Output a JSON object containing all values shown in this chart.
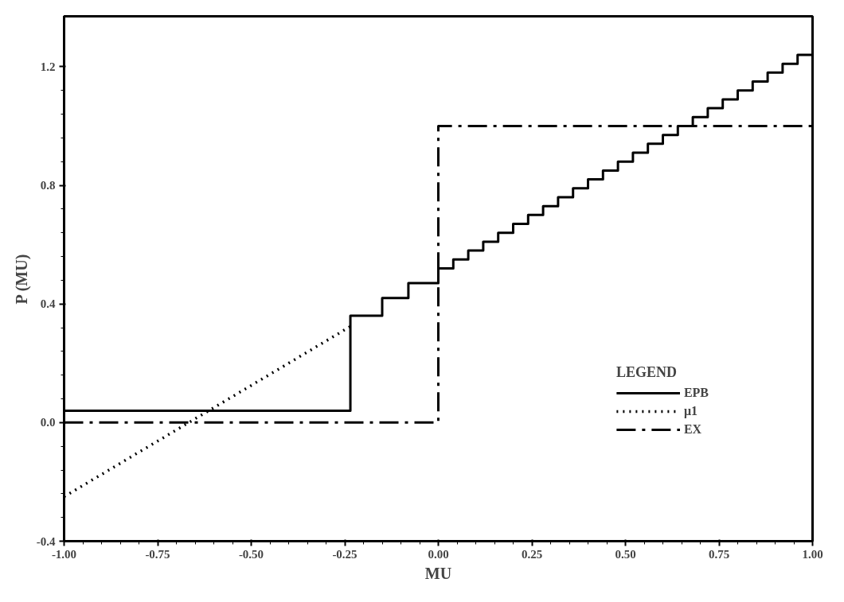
{
  "chart_data": {
    "type": "line",
    "xlabel": "MU",
    "ylabel": "P (MU)",
    "legend_title": "LEGEND",
    "legend": "bottom right",
    "grid": false,
    "xlim": [
      -1.0,
      1.0
    ],
    "ylim": [
      -0.4,
      1.37
    ],
    "xticks": [
      {
        "value": -1.0,
        "label": "-1.00"
      },
      {
        "value": -0.75,
        "label": "-0.75"
      },
      {
        "value": -0.5,
        "label": "-0.50"
      },
      {
        "value": -0.25,
        "label": "-0.25"
      },
      {
        "value": 0,
        "label": "0.00"
      },
      {
        "value": 0.25,
        "label": "0.25"
      },
      {
        "value": 0.5,
        "label": "0.50"
      },
      {
        "value": 0.75,
        "label": "0.75"
      },
      {
        "value": 1.0,
        "label": "1.00"
      }
    ],
    "yticks": [
      {
        "value": -0.4,
        "label": "-0.4"
      },
      {
        "value": 0,
        "label": "0.0"
      },
      {
        "value": 0.4,
        "label": "0.4"
      },
      {
        "value": 0.8,
        "label": "0.8"
      },
      {
        "value": 1.2,
        "label": "1.2"
      }
    ],
    "series": [
      {
        "name": "EPB",
        "color": "#000000",
        "type": "step",
        "line_style": "solid",
        "x": [
          -1.0,
          -0.235,
          -0.15,
          -0.08,
          0.0,
          0.04,
          0.08,
          0.12,
          0.16,
          0.2,
          0.24,
          0.28,
          0.32,
          0.36,
          0.4,
          0.44,
          0.48,
          0.52,
          0.56,
          0.6,
          0.64,
          0.68,
          0.72,
          0.76,
          0.8,
          0.84,
          0.88,
          0.92,
          0.96,
          1.0
        ],
        "values": [
          0.04,
          0.36,
          0.42,
          0.47,
          0.52,
          0.55,
          0.58,
          0.61,
          0.64,
          0.67,
          0.7,
          0.73,
          0.76,
          0.79,
          0.82,
          0.85,
          0.88,
          0.91,
          0.94,
          0.97,
          1.0,
          1.03,
          1.06,
          1.09,
          1.12,
          1.15,
          1.18,
          1.21,
          1.24,
          1.25
        ]
      },
      {
        "name": "μ1",
        "color": "#000000",
        "line_style": "dotted",
        "x": [
          -1.0,
          -0.235
        ],
        "values": [
          -0.25,
          0.324
        ]
      },
      {
        "name": "EX",
        "color": "#000000",
        "type": "step",
        "line_style": "dashdot",
        "x": [
          -1.0,
          0.0,
          1.0
        ],
        "values": [
          0.0,
          1.0,
          1.0
        ]
      }
    ]
  }
}
